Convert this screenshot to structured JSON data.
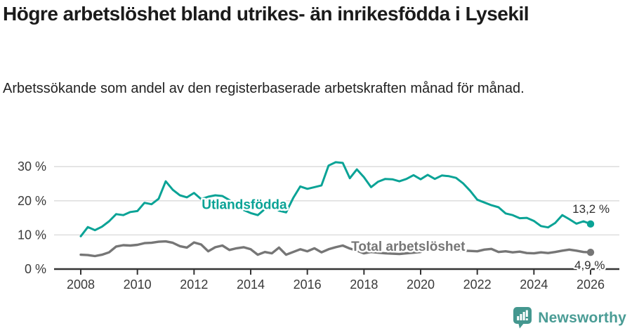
{
  "header": {
    "title": "Högre arbetslöshet bland utrikes- än inrikesfödda i Lysekil",
    "subtitle": "Arbetssökande som andel av den registerbaserade arbetskraften månad för månad."
  },
  "footer": {
    "brand": "Newsworthy",
    "logo_icon": "bar-chart-speech-bubble-icon",
    "brand_color": "#4a9c95"
  },
  "colors": {
    "foreign_born_line": "#0aa396",
    "total_line": "#767676",
    "grid": "#d9d9d9",
    "axis": "#333333",
    "text": "#222222"
  },
  "chart_data": {
    "type": "line",
    "title": "Högre arbetslöshet bland utrikes- än inrikesfödda i Lysekil",
    "subtitle": "Arbetssökande som andel av den registerbaserade arbetskraften månad för månad.",
    "xlabel": "",
    "ylabel": "",
    "xlim": [
      2007.1,
      2027.0
    ],
    "ylim": [
      0,
      33.8
    ],
    "grid": "horizontal",
    "legend_position": "inline-labels",
    "x": [
      2008,
      2008.25,
      2008.5,
      2008.75,
      2009,
      2009.25,
      2009.5,
      2009.75,
      2010,
      2010.25,
      2010.5,
      2010.75,
      2011,
      2011.25,
      2011.5,
      2011.75,
      2012,
      2012.25,
      2012.5,
      2012.75,
      2013,
      2013.25,
      2013.5,
      2013.75,
      2014,
      2014.25,
      2014.5,
      2014.75,
      2015,
      2015.25,
      2015.5,
      2015.75,
      2016,
      2016.25,
      2016.5,
      2016.75,
      2017,
      2017.25,
      2017.5,
      2017.75,
      2018,
      2018.25,
      2018.5,
      2018.75,
      2019,
      2019.25,
      2019.5,
      2019.75,
      2020,
      2020.25,
      2020.5,
      2020.75,
      2021,
      2021.25,
      2021.5,
      2021.75,
      2022,
      2022.25,
      2022.5,
      2022.75,
      2023,
      2023.25,
      2023.5,
      2023.75,
      2024,
      2024.25,
      2024.5,
      2024.75,
      2025,
      2025.25,
      2025.5,
      2025.75,
      2026
    ],
    "series": [
      {
        "name": "Utlandsfödda",
        "color": "#0aa396",
        "values": [
          9.6,
          12.3,
          11.4,
          12.4,
          14.0,
          16.1,
          15.8,
          16.7,
          17.0,
          19.4,
          19.0,
          20.6,
          25.7,
          23.2,
          21.6,
          21.0,
          22.3,
          20.5,
          21.2,
          21.6,
          21.4,
          20.2,
          18.6,
          17.3,
          16.4,
          15.8,
          17.6,
          18.7,
          17.1,
          16.6,
          20.8,
          24.2,
          23.5,
          24.0,
          24.5,
          30.3,
          31.3,
          31.1,
          26.6,
          29.2,
          26.9,
          24.0,
          25.6,
          26.4,
          26.3,
          25.7,
          26.4,
          27.5,
          26.3,
          27.6,
          26.4,
          27.4,
          27.2,
          26.7,
          25.1,
          22.9,
          20.3,
          19.5,
          18.7,
          18.1,
          16.3,
          15.8,
          14.9,
          15.0,
          14.1,
          12.6,
          12.2,
          13.5,
          15.8,
          14.6,
          13.3,
          14.0,
          13.2
        ]
      },
      {
        "name": "Total arbetslöshet",
        "color": "#767676",
        "values": [
          4.2,
          4.1,
          3.8,
          4.2,
          4.9,
          6.6,
          7.0,
          6.9,
          7.1,
          7.6,
          7.7,
          8.0,
          8.1,
          7.7,
          6.7,
          6.3,
          7.8,
          7.2,
          5.2,
          6.4,
          6.9,
          5.6,
          6.1,
          6.4,
          5.8,
          4.2,
          5.0,
          4.6,
          6.3,
          4.2,
          5.0,
          5.8,
          5.2,
          6.1,
          4.9,
          5.8,
          6.4,
          6.9,
          6.0,
          5.4,
          4.6,
          5.0,
          4.8,
          4.6,
          4.5,
          4.4,
          4.6,
          4.8,
          5.0,
          6.3,
          6.4,
          6.0,
          5.8,
          5.6,
          5.4,
          5.3,
          5.2,
          5.7,
          5.9,
          5.0,
          5.2,
          4.9,
          5.1,
          4.7,
          4.6,
          4.9,
          4.7,
          5.0,
          5.4,
          5.7,
          5.4,
          5.0,
          4.9
        ]
      }
    ],
    "xticks": {
      "values": [
        2008,
        2010,
        2012,
        2014,
        2016,
        2018,
        2020,
        2022,
        2024,
        2026
      ],
      "labels": [
        "2008",
        "2010",
        "2012",
        "2014",
        "2016",
        "2018",
        "2020",
        "2022",
        "2024",
        "2026"
      ]
    },
    "yticks": {
      "values": [
        0,
        10,
        20,
        30
      ],
      "labels": [
        "0 %",
        "10 %",
        "20 %",
        "30 %"
      ]
    },
    "series_labels": [
      {
        "text": "Utlandsfödda",
        "series": 0,
        "x": 2012.27,
        "y": 17.6
      },
      {
        "text": "Total arbetslöshet",
        "series": 1,
        "x": 2017.55,
        "y": 5.3
      }
    ],
    "end_labels": [
      {
        "text": "13,2 %",
        "series": 0,
        "x": 2025.36,
        "y": 16.5
      },
      {
        "text": "4,9 %",
        "series": 1,
        "x": 2025.43,
        "y": -0.05
      }
    ]
  }
}
